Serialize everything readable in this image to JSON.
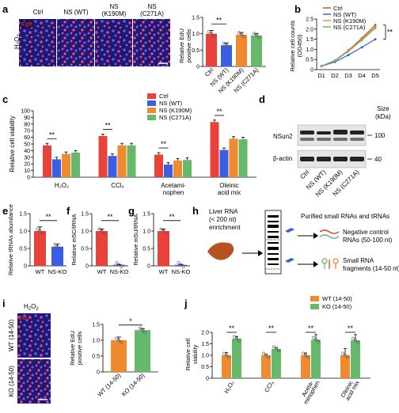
{
  "colors": {
    "ctrl": "#e8423a",
    "wt": "#3a5fe6",
    "k190m": "#f08a2e",
    "c271a": "#66b96a",
    "ko": "#66b96a",
    "wt1450": "#f08a2e",
    "edu": "#e8423a"
  },
  "panels": {
    "a": "a",
    "b": "b",
    "c": "c",
    "d": "d",
    "e": "e",
    "f": "f",
    "g": "g",
    "h": "h",
    "i": "i",
    "j": "j"
  },
  "a": {
    "col_labels": [
      [
        "Ctrl"
      ],
      [
        "NS (WT)"
      ],
      [
        "NS",
        "(K190M)"
      ],
      [
        "NS",
        "(C271A)"
      ]
    ],
    "edu": "EdU",
    "row_label": "H2O2",
    "sig": "**",
    "chart_data": {
      "type": "bar",
      "categories": [
        "Ctrl",
        "NS (WT)",
        "NS (K190M)",
        "NS (C271A)"
      ],
      "values": [
        1.0,
        0.65,
        0.97,
        0.95
      ],
      "errors": [
        0.1,
        0.07,
        0.07,
        0.06
      ],
      "ylabel": "Relative EdU positive cells",
      "ylim": [
        0,
        1.5
      ],
      "yticks": [
        "0",
        "0.5",
        "1.0",
        "1.5"
      ]
    }
  },
  "b": {
    "legend": [
      "Ctrl",
      "NS (WT)",
      "NS (K190M)",
      "NS (C271A)"
    ],
    "sig": "**",
    "chart_data": {
      "type": "line",
      "x": [
        "D1",
        "D2",
        "D3",
        "D4",
        "D5"
      ],
      "series": [
        {
          "name": "Ctrl",
          "values": [
            0.18,
            0.45,
            0.95,
            1.55,
            2.2
          ]
        },
        {
          "name": "NS (WT)",
          "values": [
            0.17,
            0.38,
            0.72,
            1.1,
            1.5
          ]
        },
        {
          "name": "NS (K190M)",
          "values": [
            0.18,
            0.44,
            0.92,
            1.5,
            2.1
          ]
        },
        {
          "name": "NS (C271A)",
          "values": [
            0.18,
            0.43,
            0.9,
            1.45,
            2.05
          ]
        }
      ],
      "ylabel": "Relative cell counts (OD450)",
      "ylim": [
        0,
        2.5
      ],
      "yticks": [
        "0",
        "0.5",
        "1.0",
        "1.5",
        "2.0",
        "2.5"
      ]
    }
  },
  "c": {
    "legend": [
      "Ctrl",
      "NS (WT)",
      "NS (K190M)",
      "NS (C271A)"
    ],
    "sig": "**",
    "chart_data": {
      "type": "bar",
      "categories": [
        "H2O2",
        "CCl4",
        "Acetaminophen",
        "Oleinic acid mix"
      ],
      "category_lines": [
        [
          "H₂O₂"
        ],
        [
          "CCl₄"
        ],
        [
          "Acetami-",
          "nophen"
        ],
        [
          "Oleinic",
          "acid mix"
        ]
      ],
      "series": [
        {
          "name": "Ctrl",
          "values": [
            48,
            62,
            34,
            83
          ]
        },
        {
          "name": "NS (WT)",
          "values": [
            27,
            32,
            19,
            41
          ]
        },
        {
          "name": "NS (K190M)",
          "values": [
            35,
            48,
            25,
            58
          ]
        },
        {
          "name": "NS (C271A)",
          "values": [
            37,
            48,
            26,
            57
          ]
        }
      ],
      "ylabel": "Relative cell viability",
      "ylim": [
        0,
        100
      ],
      "yticks": [
        "0",
        "10",
        "20",
        "30",
        "40",
        "50",
        "60",
        "70",
        "80",
        "90",
        "100"
      ]
    }
  },
  "d": {
    "size_label": "Size",
    "kda": "(kDa)",
    "row1": "NSun2",
    "row2": "β-actin",
    "mw1": "100",
    "mw2": "40",
    "lanes": [
      "Ctrl",
      "NS (WT)",
      "NS (K190M)",
      "NS (C271A)"
    ]
  },
  "e": {
    "sig": "**",
    "chart_data": {
      "type": "bar",
      "categories": [
        "WT",
        "NS-KO"
      ],
      "values": [
        1.0,
        0.55
      ],
      "errors": [
        0.12,
        0.08
      ],
      "ylabel": "Relative tRNAs abundance",
      "ylim": [
        0,
        1.5
      ],
      "yticks": [
        "0",
        "0.5",
        "1.0",
        "1.5"
      ]
    }
  },
  "f": {
    "sig": "**",
    "chart_data": {
      "type": "bar",
      "categories": [
        "WT",
        "NS-KO"
      ],
      "values": [
        1.0,
        0.03
      ],
      "errors": [
        0.06,
        0.01
      ],
      "ylabel": "Relative m5C/tRNA",
      "ylim": [
        0,
        1.5
      ],
      "yticks": [
        "0",
        "0.5",
        "1.0",
        "1.5"
      ]
    }
  },
  "g": {
    "sig": "**",
    "chart_data": {
      "type": "bar",
      "categories": [
        "WT",
        "NS-KO"
      ],
      "values": [
        1.0,
        0.03
      ],
      "errors": [
        0.06,
        0.01
      ],
      "ylabel": "Relative m5U/tRNA",
      "ylim": [
        0,
        1.5
      ],
      "yticks": [
        "0",
        "0.5",
        "1.0",
        "1.5"
      ]
    }
  },
  "h": {
    "liver_lines": [
      "Liver RNA",
      "(< 200 nt)",
      "enrichment"
    ],
    "purified": "Purified small RNAs and tRNAs",
    "neg": [
      "Negative control",
      "RNAs (50-100 nt)"
    ],
    "small": [
      "Small RNA",
      "fragments (14-50 nt)"
    ]
  },
  "i": {
    "title": "H2O2",
    "edu": "EdU",
    "rows": [
      "WT (14-50)",
      "KO (14-50)"
    ],
    "sig": "*",
    "chart_data": {
      "type": "bar",
      "categories": [
        "WT (14-50)",
        "KO (14-50)"
      ],
      "values": [
        1.0,
        1.32
      ],
      "errors": [
        0.1,
        0.05
      ],
      "ylabel": "Relative EdU positive cells",
      "ylim": [
        0,
        1.5
      ],
      "yticks": [
        "0",
        "0.5",
        "1.0",
        "1.5"
      ]
    }
  },
  "j": {
    "legend": [
      "WT (14-50)",
      "KO (14-50)"
    ],
    "sig": "**",
    "chart_data": {
      "type": "bar",
      "categories": [
        "H2O2",
        "CCl4",
        "Acetaminophen",
        "Oleinic acid mix"
      ],
      "category_lines": [
        [
          "H₂O₂"
        ],
        [
          "CCl₄"
        ],
        [
          "Aceta-",
          "minophen"
        ],
        [
          "Oleinic",
          "acid mix"
        ]
      ],
      "series": [
        {
          "name": "WT (14-50)",
          "values": [
            1.0,
            1.0,
            1.0,
            1.0
          ]
        },
        {
          "name": "KO (14-50)",
          "values": [
            1.72,
            1.28,
            1.68,
            1.65
          ]
        }
      ],
      "errors": [
        [
          0.12,
          0.05,
          0.1,
          0.3
        ],
        [
          0.1,
          0.06,
          0.22,
          0.25
        ]
      ],
      "ylabel": "Relative cell viability",
      "ylim": [
        0,
        2.0
      ],
      "yticks": [
        "0",
        "0.5",
        "1.0",
        "1.5",
        "2.0"
      ]
    }
  }
}
